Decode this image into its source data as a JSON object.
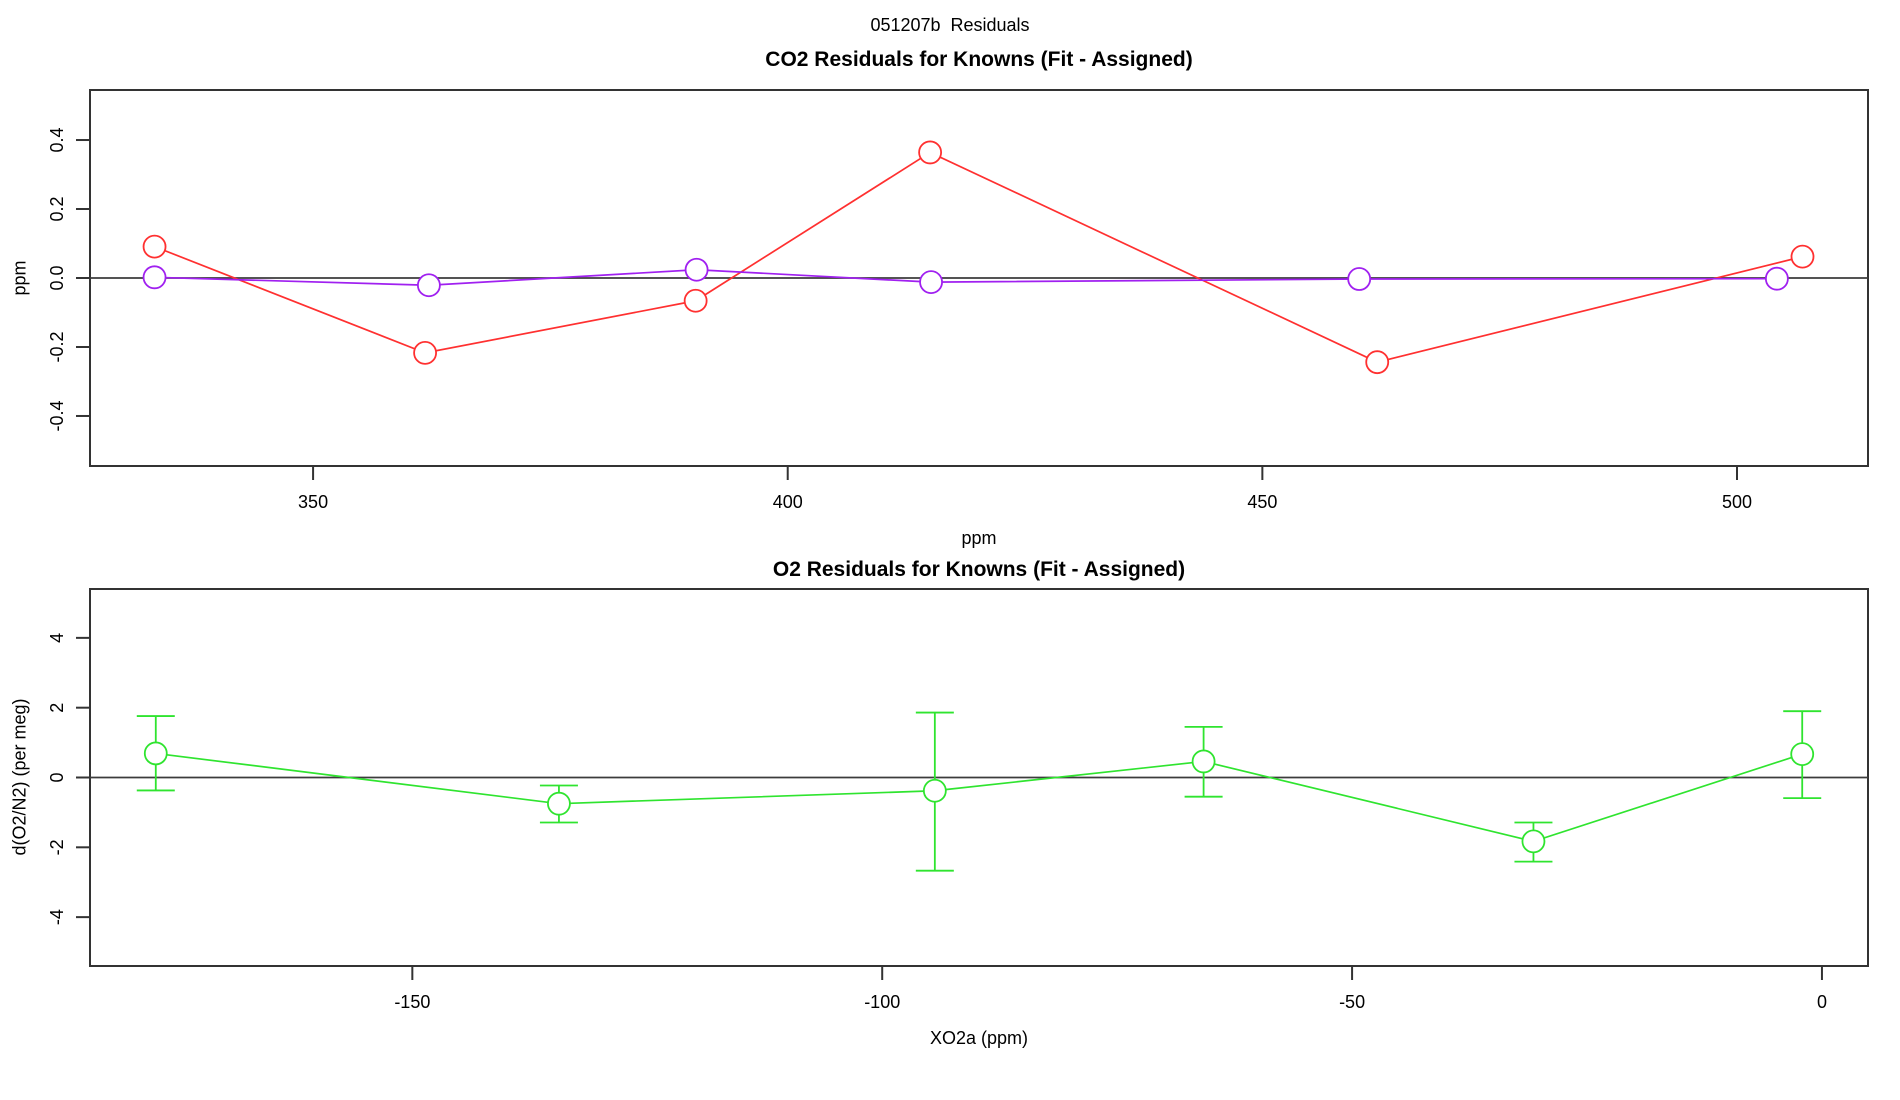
{
  "figure": {
    "title": "051207b  Residuals"
  },
  "panels": {
    "co2": {
      "title": "CO2 Residuals for Knowns (Fit - Assigned)",
      "xlabel": "ppm",
      "ylabel": "ppm"
    },
    "o2": {
      "title": "O2 Residuals for Knowns (Fit - Assigned)",
      "xlabel": "XO2a (ppm)",
      "ylabel": "d(O2/N2) (per meg)"
    }
  },
  "chart_data": [
    {
      "type": "line",
      "name": "co2-residuals",
      "title": "CO2 Residuals for Knowns (Fit - Assigned)",
      "xlabel": "ppm",
      "ylabel": "ppm",
      "xlim": [
        326.5,
        513.8
      ],
      "ylim": [
        -0.545,
        0.545
      ],
      "xticks": [
        350,
        400,
        450,
        500
      ],
      "xtick_labels": [
        "350",
        "400",
        "450",
        "500"
      ],
      "yticks": [
        -0.4,
        -0.2,
        0.0,
        0.2,
        0.4
      ],
      "ytick_labels": [
        "-0.4",
        "-0.2",
        "0.0",
        "0.2",
        "0.4"
      ],
      "zero_line": true,
      "grid": false,
      "legend": "none",
      "series": [
        {
          "name": "red-series",
          "color": "#ff3030",
          "marker": "open-circle",
          "x": [
            333.3,
            361.8,
            390.3,
            415.0,
            462.1,
            506.9
          ],
          "y": [
            0.091,
            -0.217,
            -0.066,
            0.364,
            -0.244,
            0.062
          ]
        },
        {
          "name": "purple-series",
          "color": "#a020f0",
          "marker": "open-circle",
          "x": [
            333.3,
            362.2,
            390.4,
            415.1,
            460.2,
            504.2
          ],
          "y": [
            0.002,
            -0.021,
            0.024,
            -0.012,
            -0.003,
            -0.002
          ]
        }
      ]
    },
    {
      "type": "line",
      "name": "o2-residuals",
      "title": "O2 Residuals for Knowns (Fit - Assigned)",
      "xlabel": "XO2a (ppm)",
      "ylabel": "d(O2/N2) (per meg)",
      "xlim": [
        -184.3,
        4.9
      ],
      "ylim": [
        -5.4,
        5.4
      ],
      "xticks": [
        -150,
        -100,
        -50,
        0
      ],
      "xtick_labels": [
        "-150",
        "-100",
        "-50",
        "0"
      ],
      "yticks": [
        -4,
        -2,
        0,
        2,
        4
      ],
      "ytick_labels": [
        "-4",
        "-2",
        "0",
        "2",
        "4"
      ],
      "zero_line": true,
      "grid": false,
      "legend": "none",
      "series": [
        {
          "name": "green-series",
          "color": "#2fe42f",
          "marker": "open-circle",
          "error_bars": true,
          "x": [
            -177.3,
            -134.4,
            -94.4,
            -65.8,
            -30.7,
            -2.1
          ],
          "y": [
            0.69,
            -0.75,
            -0.38,
            0.46,
            -1.83,
            0.67
          ],
          "err_lo": [
            -0.37,
            -1.29,
            -2.67,
            -0.55,
            -2.41,
            -0.59
          ],
          "err_hi": [
            1.76,
            -0.23,
            1.86,
            1.45,
            -1.29,
            1.9
          ]
        }
      ]
    }
  ]
}
